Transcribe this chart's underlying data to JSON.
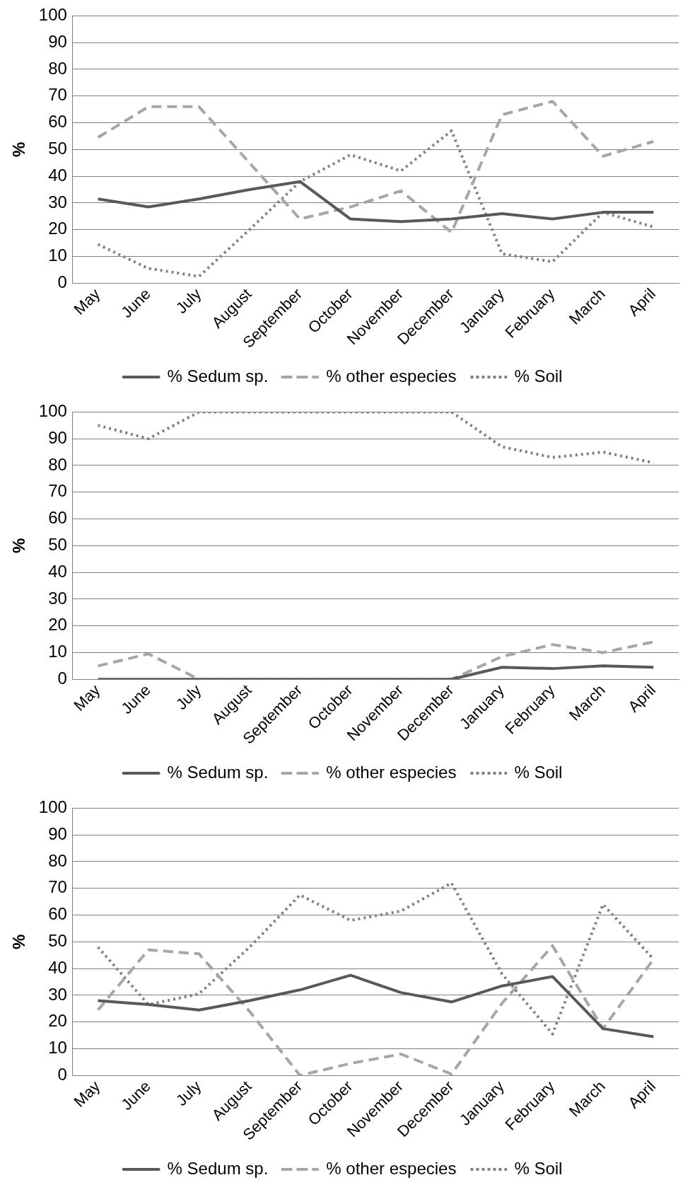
{
  "chart_data": [
    {
      "type": "line",
      "ylabel": "%",
      "categories": [
        "May",
        "June",
        "July",
        "August",
        "September",
        "October",
        "November",
        "December",
        "January",
        "February",
        "March",
        "April"
      ],
      "ylim": [
        0,
        100
      ],
      "yticks": [
        0,
        10,
        20,
        30,
        40,
        50,
        60,
        70,
        80,
        90,
        100
      ],
      "grid": "y",
      "legend": "bottom",
      "marker": "none",
      "series": [
        {
          "name": "% Sedum sp.",
          "color": "#595959",
          "line_style": "solid",
          "values": [
            31.5,
            28.5,
            31.5,
            35,
            38,
            24,
            23,
            24,
            26,
            24,
            26.5,
            26.5
          ]
        },
        {
          "name": "% other especies",
          "color": "#a6a6a6",
          "line_style": "dashed",
          "values": [
            54.5,
            66,
            66,
            45,
            24,
            28.5,
            34.5,
            19,
            63,
            68,
            47.5,
            53
          ]
        },
        {
          "name": "% Soil",
          "color": "#7f7f7f",
          "line_style": "dotted",
          "values": [
            14.5,
            5.5,
            2.5,
            20,
            38,
            48,
            42,
            57,
            11,
            8,
            26.5,
            21
          ]
        }
      ]
    },
    {
      "type": "line",
      "ylabel": "%",
      "categories": [
        "May",
        "June",
        "July",
        "August",
        "September",
        "October",
        "November",
        "December",
        "January",
        "February",
        "March",
        "April"
      ],
      "ylim": [
        0,
        100
      ],
      "yticks": [
        0,
        10,
        20,
        30,
        40,
        50,
        60,
        70,
        80,
        90,
        100
      ],
      "grid": "y",
      "legend": "bottom",
      "marker": "none",
      "series": [
        {
          "name": "% Sedum sp.",
          "color": "#595959",
          "line_style": "solid",
          "values": [
            0,
            0,
            0,
            0,
            0,
            0,
            0,
            0,
            4.5,
            4,
            5,
            4.5
          ]
        },
        {
          "name": "% other especies",
          "color": "#a6a6a6",
          "line_style": "dashed",
          "values": [
            5,
            9.5,
            0,
            0,
            0,
            0,
            0,
            0,
            8.5,
            13,
            10,
            14
          ]
        },
        {
          "name": "% Soil",
          "color": "#7f7f7f",
          "line_style": "dotted",
          "values": [
            95,
            90,
            100,
            100,
            100,
            100,
            100,
            100,
            87,
            83,
            85,
            81
          ]
        }
      ]
    },
    {
      "type": "line",
      "ylabel": "%",
      "categories": [
        "May",
        "June",
        "July",
        "August",
        "September",
        "October",
        "November",
        "December",
        "January",
        "February",
        "March",
        "April"
      ],
      "ylim": [
        0,
        100
      ],
      "yticks": [
        0,
        10,
        20,
        30,
        40,
        50,
        60,
        70,
        80,
        90,
        100
      ],
      "grid": "y",
      "legend": "bottom",
      "marker": "none",
      "series": [
        {
          "name": "% Sedum sp.",
          "color": "#595959",
          "line_style": "solid",
          "values": [
            28,
            26.5,
            24.5,
            28,
            32,
            37.5,
            31,
            27.5,
            33.5,
            37,
            17.5,
            14.5
          ]
        },
        {
          "name": "% other especies",
          "color": "#a6a6a6",
          "line_style": "dashed",
          "values": [
            24.5,
            47,
            45.5,
            24,
            0,
            4.5,
            8,
            0.5,
            27,
            48.5,
            17.5,
            43.5
          ]
        },
        {
          "name": "% Soil",
          "color": "#7f7f7f",
          "line_style": "dotted",
          "values": [
            48,
            26.5,
            30.5,
            48,
            67.5,
            58,
            61.5,
            72,
            38,
            15.5,
            64,
            43.5
          ]
        }
      ]
    }
  ]
}
